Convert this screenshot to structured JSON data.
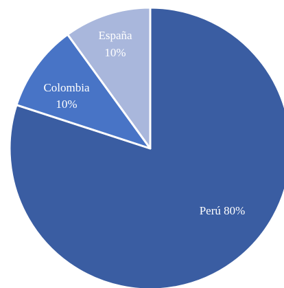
{
  "chart_data": {
    "type": "pie",
    "title": "",
    "start_angle_deg": 0,
    "direction": "clockwise",
    "slices": [
      {
        "name": "Perú",
        "value": 80,
        "label": "Perú 80%",
        "color": "#3a5da2"
      },
      {
        "name": "Colombia",
        "value": 10,
        "label_name": "Colombia",
        "label_value": "10%",
        "color": "#4874c6"
      },
      {
        "name": "España",
        "value": 10,
        "label_name": "España",
        "label_value": "10%",
        "color": "#a9b7dc"
      }
    ],
    "legend": "none"
  }
}
